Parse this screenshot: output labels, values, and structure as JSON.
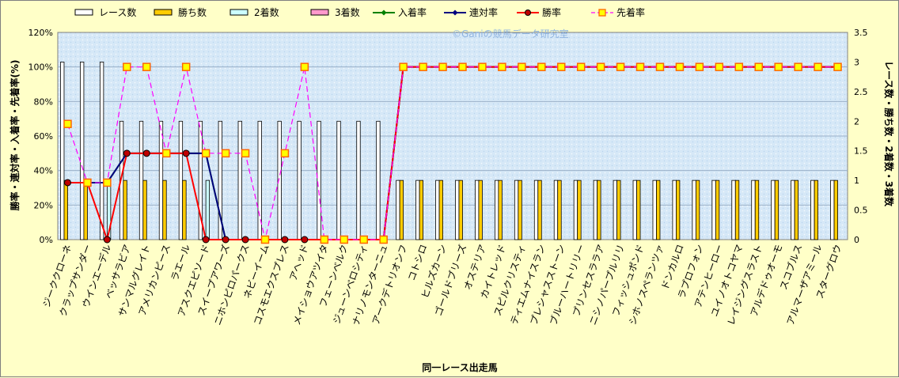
{
  "chart_data": {
    "type": "bar",
    "watermark": "©Ganiの競馬データ研究室",
    "xlabel": "同一レース出走馬",
    "ylabel_left": "勝率・連対率・入着率・先着率(%)",
    "ylabel_right": "レース数・勝ち数・2着数・3着数",
    "ylim_left": [
      0,
      120
    ],
    "ylim_right": [
      0,
      3.5
    ],
    "yticks_left": [
      "0%",
      "20%",
      "40%",
      "60%",
      "80%",
      "100%",
      "120%"
    ],
    "yticks_right": [
      "0",
      "0.5",
      "1",
      "1.5",
      "2",
      "2.5",
      "3",
      "3.5"
    ],
    "grid": true,
    "legend_position": "top",
    "categories": [
      "ジーククローネ",
      "クラップサンダー",
      "ウインエーデル",
      "ベッサラビア",
      "サンマルグレイト",
      "アメリカンピース",
      "ラエール",
      "アスクエピソード",
      "スイープアワーズ",
      "ニホンピロパークス",
      "ネビーイーム",
      "コスモエクスプレス",
      "アヘッド",
      "メイショウアツイタ",
      "フェーンベルク",
      "ジューンベロシティ",
      "ナリノモンターニュ",
      "アークデトリオンフ",
      "コトシロ",
      "ヒルズカーン",
      "ゴールドブリーズ",
      "オステリア",
      "カイトレッド",
      "スピルクリスティ",
      "ティエムナイスラン",
      "プレシャスストーン",
      "ブルーハートリリー",
      "プリンセスララア",
      "ニシノパープルリリ",
      "フィッシュポンド",
      "シホノスペランツァ",
      "ドンカルロ",
      "ラプロフォン",
      "アテンヒーロー",
      "ユイノオトコヤマ",
      "レイジングスラスト",
      "アルデドゥオーモ",
      "スコブルス",
      "アルマーザアミール",
      "スターグロウ"
    ],
    "series": [
      {
        "name": "レース数",
        "kind": "bar",
        "axis": "right",
        "color": "#ffffff",
        "values": [
          3,
          3,
          3,
          2,
          2,
          2,
          2,
          2,
          2,
          2,
          2,
          2,
          2,
          2,
          2,
          2,
          2,
          1,
          1,
          1,
          1,
          1,
          1,
          1,
          1,
          1,
          1,
          1,
          1,
          1,
          1,
          1,
          1,
          1,
          1,
          1,
          1,
          1,
          1,
          1
        ]
      },
      {
        "name": "勝ち数",
        "kind": "bar",
        "axis": "right",
        "color": "#ffcc00",
        "values": [
          1,
          1,
          0,
          1,
          1,
          1,
          1,
          0,
          0,
          0,
          0,
          0,
          0,
          0,
          0,
          0,
          0,
          1,
          1,
          1,
          1,
          1,
          1,
          1,
          1,
          1,
          1,
          1,
          1,
          1,
          1,
          1,
          1,
          1,
          1,
          1,
          1,
          1,
          1,
          1
        ]
      },
      {
        "name": "2着数",
        "kind": "bar",
        "axis": "right",
        "color": "#ccffff",
        "values": [
          0,
          0,
          1,
          0,
          0,
          0,
          0,
          1,
          0,
          0,
          0,
          0,
          0,
          0,
          0,
          0,
          0,
          0,
          0,
          0,
          0,
          0,
          0,
          0,
          0,
          0,
          0,
          0,
          0,
          0,
          0,
          0,
          0,
          0,
          0,
          0,
          0,
          0,
          0,
          0
        ]
      },
      {
        "name": "3着数",
        "kind": "bar",
        "axis": "right",
        "color": "#ff99cc",
        "values": [
          0,
          0,
          0,
          0,
          0,
          0,
          0,
          0,
          0,
          0,
          0,
          0,
          0,
          0,
          0,
          0,
          0,
          0,
          0,
          0,
          0,
          0,
          0,
          0,
          0,
          0,
          0,
          0,
          0,
          0,
          0,
          0,
          0,
          0,
          0,
          0,
          0,
          0,
          0,
          0
        ]
      },
      {
        "name": "入着率",
        "kind": "line",
        "axis": "left",
        "color": "#008000",
        "values": [
          33,
          33,
          33,
          50,
          50,
          50,
          50,
          50,
          0,
          0,
          0,
          0,
          0,
          0,
          0,
          0,
          0,
          100,
          100,
          100,
          100,
          100,
          100,
          100,
          100,
          100,
          100,
          100,
          100,
          100,
          100,
          100,
          100,
          100,
          100,
          100,
          100,
          100,
          100,
          100
        ]
      },
      {
        "name": "連対率",
        "kind": "line",
        "axis": "left",
        "color": "#000080",
        "values": [
          33,
          33,
          33,
          50,
          50,
          50,
          50,
          50,
          0,
          0,
          0,
          0,
          0,
          0,
          0,
          0,
          0,
          100,
          100,
          100,
          100,
          100,
          100,
          100,
          100,
          100,
          100,
          100,
          100,
          100,
          100,
          100,
          100,
          100,
          100,
          100,
          100,
          100,
          100,
          100
        ]
      },
      {
        "name": "勝率",
        "kind": "line",
        "axis": "left",
        "color": "#ff0000",
        "values": [
          33,
          33,
          0,
          50,
          50,
          50,
          50,
          0,
          0,
          0,
          0,
          0,
          0,
          0,
          0,
          0,
          0,
          100,
          100,
          100,
          100,
          100,
          100,
          100,
          100,
          100,
          100,
          100,
          100,
          100,
          100,
          100,
          100,
          100,
          100,
          100,
          100,
          100,
          100,
          100
        ]
      },
      {
        "name": "先着率",
        "kind": "line",
        "axis": "left",
        "color": "#ff00ff",
        "values": [
          67,
          33,
          33,
          100,
          100,
          50,
          100,
          50,
          50,
          50,
          0,
          50,
          100,
          0,
          0,
          0,
          0,
          100,
          100,
          100,
          100,
          100,
          100,
          100,
          100,
          100,
          100,
          100,
          100,
          100,
          100,
          100,
          100,
          100,
          100,
          100,
          100,
          100,
          100,
          100
        ]
      }
    ]
  }
}
